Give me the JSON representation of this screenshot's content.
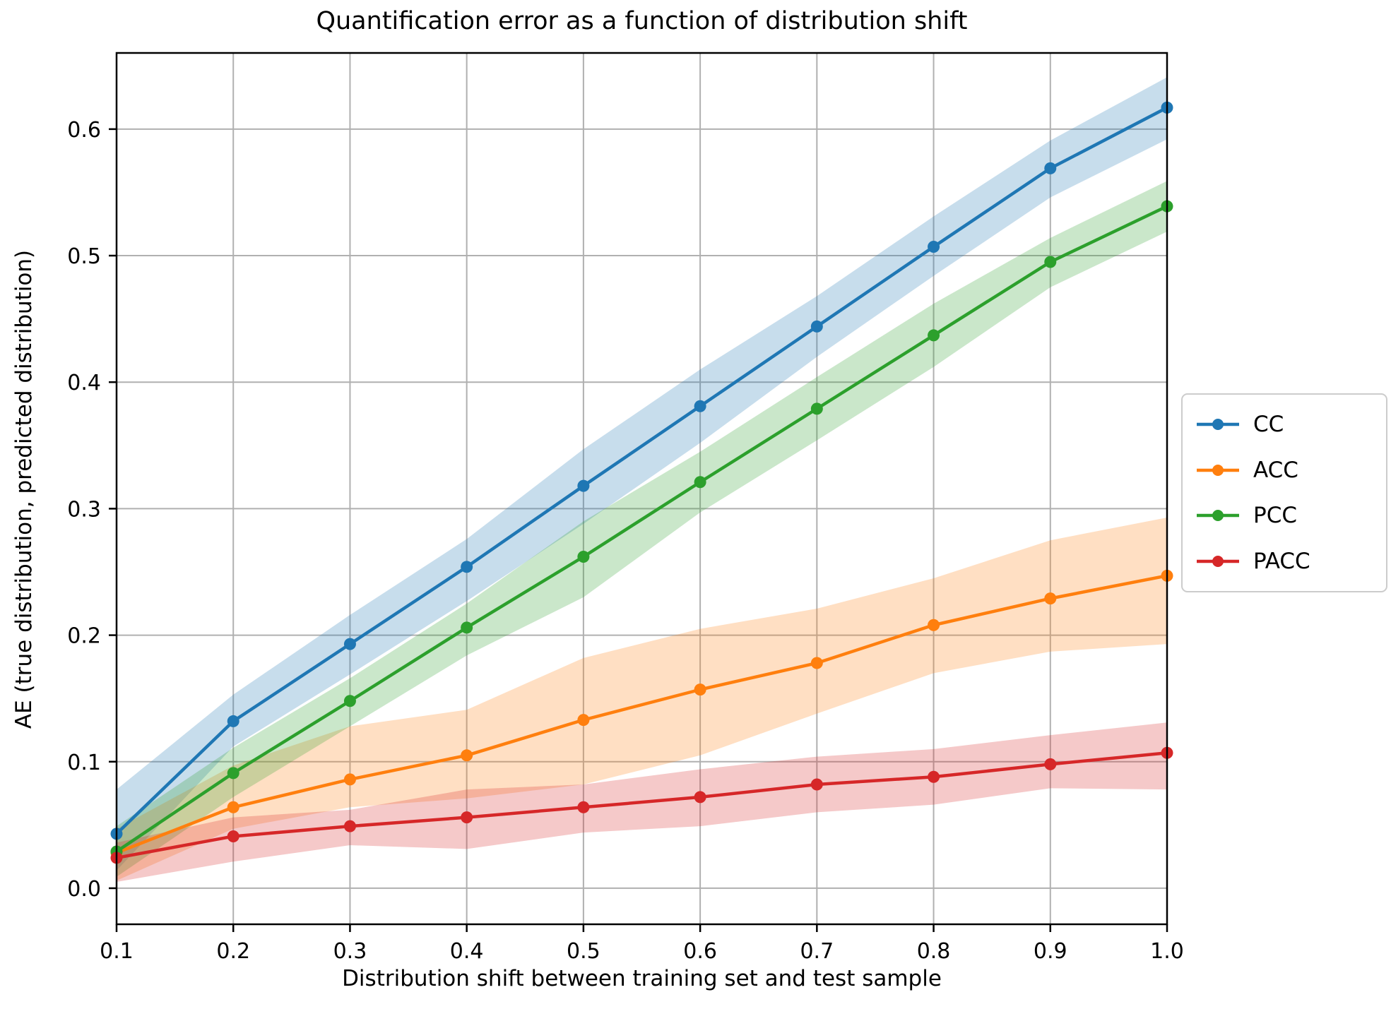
{
  "figure": {
    "title": "Quantification error as a function of distribution shift",
    "xlabel": "Distribution shift between training set and test sample",
    "ylabel": "AE (true distribution, predicted distribution)"
  },
  "legend": {
    "position": "right of axes, vertically centered",
    "items": [
      {
        "label": "CC",
        "color": "#1f77b4"
      },
      {
        "label": "ACC",
        "color": "#ff7f0e"
      },
      {
        "label": "PCC",
        "color": "#2ca02c"
      },
      {
        "label": "PACC",
        "color": "#d62728"
      }
    ]
  },
  "chart_data": {
    "type": "line",
    "title": "Quantification error as a function of distribution shift",
    "xlabel": "Distribution shift between training set and test sample",
    "ylabel": "AE (true distribution, predicted distribution)",
    "grid": true,
    "grid_color": "#b0b0b0",
    "marker": "circle",
    "band_alpha": 0.25,
    "x": [
      0.1,
      0.2,
      0.3,
      0.4,
      0.5,
      0.6,
      0.7,
      0.8,
      0.9,
      1.0
    ],
    "xlim": [
      0.1,
      1.0
    ],
    "ylim": [
      -0.0285,
      0.6602
    ],
    "xtick_labels": [
      "0.1",
      "0.2",
      "0.3",
      "0.4",
      "0.5",
      "0.6",
      "0.7",
      "0.8",
      "0.9",
      "1.0"
    ],
    "ytick_values": [
      0.0,
      0.1,
      0.2,
      0.3,
      0.4,
      0.5,
      0.6
    ],
    "ytick_labels": [
      "0.0",
      "0.1",
      "0.2",
      "0.3",
      "0.4",
      "0.5",
      "0.6"
    ],
    "series": [
      {
        "name": "CC",
        "color": "#1f77b4",
        "values": [
          0.043,
          0.132,
          0.193,
          0.254,
          0.318,
          0.381,
          0.444,
          0.507,
          0.569,
          0.617
        ],
        "band_lower": [
          0.014,
          0.112,
          0.169,
          0.227,
          0.288,
          0.352,
          0.42,
          0.484,
          0.546,
          0.592
        ],
        "band_upper": [
          0.078,
          0.153,
          0.216,
          0.276,
          0.347,
          0.41,
          0.468,
          0.531,
          0.591,
          0.641
        ]
      },
      {
        "name": "ACC",
        "color": "#ff7f0e",
        "values": [
          0.028,
          0.064,
          0.086,
          0.105,
          0.133,
          0.157,
          0.178,
          0.208,
          0.229,
          0.247
        ],
        "band_lower": [
          0.006,
          0.047,
          0.064,
          0.071,
          0.082,
          0.105,
          0.138,
          0.17,
          0.187,
          0.193
        ],
        "band_upper": [
          0.047,
          0.097,
          0.128,
          0.141,
          0.182,
          0.205,
          0.221,
          0.245,
          0.275,
          0.293
        ]
      },
      {
        "name": "PCC",
        "color": "#2ca02c",
        "values": [
          0.029,
          0.091,
          0.148,
          0.206,
          0.262,
          0.321,
          0.379,
          0.437,
          0.495,
          0.539
        ],
        "band_lower": [
          0.009,
          0.072,
          0.128,
          0.184,
          0.23,
          0.297,
          0.354,
          0.412,
          0.475,
          0.519
        ],
        "band_upper": [
          0.049,
          0.111,
          0.166,
          0.225,
          0.29,
          0.345,
          0.404,
          0.462,
          0.514,
          0.559
        ]
      },
      {
        "name": "PACC",
        "color": "#d62728",
        "values": [
          0.024,
          0.041,
          0.049,
          0.056,
          0.064,
          0.072,
          0.082,
          0.088,
          0.098,
          0.107
        ],
        "band_lower": [
          0.005,
          0.021,
          0.034,
          0.031,
          0.044,
          0.049,
          0.06,
          0.066,
          0.079,
          0.078
        ],
        "band_upper": [
          0.036,
          0.056,
          0.062,
          0.078,
          0.082,
          0.094,
          0.104,
          0.11,
          0.121,
          0.131
        ]
      }
    ]
  }
}
